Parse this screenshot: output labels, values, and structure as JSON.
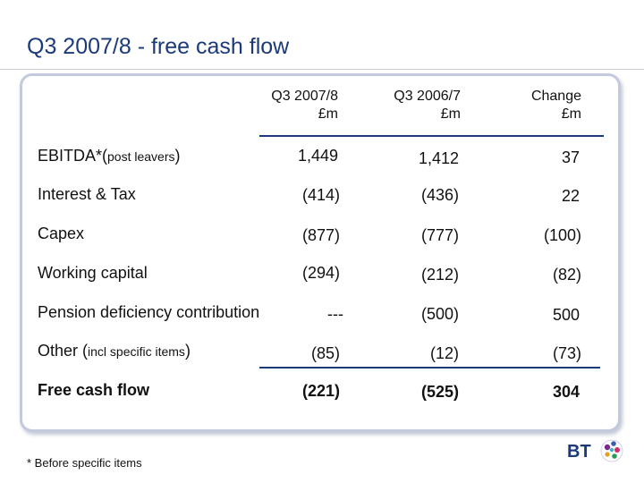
{
  "title": "Q3 2007/8 - free cash flow",
  "columns": [
    {
      "line1": "Q3 2007/8",
      "line2": "£m"
    },
    {
      "line1": "Q3 2006/7",
      "line2": "£m"
    },
    {
      "line1": "Change",
      "line2": "£m"
    }
  ],
  "rows": [
    {
      "label": "EBITDA*(",
      "label_small": "post leavers",
      "label_end": ")",
      "values": [
        "1,449",
        "1,412",
        "37"
      ]
    },
    {
      "label": "Interest & Tax",
      "values": [
        "(414)",
        "(436)",
        "22"
      ]
    },
    {
      "label": "Capex",
      "values": [
        "(877)",
        "(777)",
        "(100)"
      ]
    },
    {
      "label": "Working capital",
      "values": [
        "(294)",
        "(212)",
        "(82)"
      ]
    },
    {
      "label": "Pension deficiency contribution",
      "values": [
        "---",
        "(500)",
        "500"
      ]
    },
    {
      "label": "Other (",
      "label_small": "incl specific items",
      "label_end": ")",
      "values": [
        "(85)",
        "(12)",
        "(73)"
      ]
    },
    {
      "label": "Free cash flow",
      "values": [
        "(221)",
        "(525)",
        "304"
      ]
    }
  ],
  "footnote": "* Before specific items",
  "logo": {
    "text": "BT",
    "icon": "bt-piper-logo-icon"
  },
  "colors": {
    "title": "#1a3a7a",
    "rule": "#1a3a7a",
    "panel_border": "#c3cadd"
  }
}
